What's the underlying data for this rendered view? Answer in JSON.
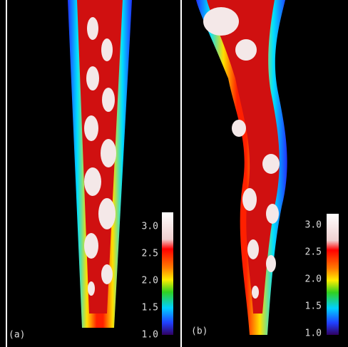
{
  "panels": [
    {
      "label": "(a)",
      "colorbar": {
        "ticks": [
          "3.0",
          "2.5",
          "2.0",
          "1.5",
          "1.0"
        ]
      }
    },
    {
      "label": "(b)",
      "colorbar": {
        "ticks": [
          "3.0",
          "2.5",
          "2.0",
          "1.5",
          "1.0"
        ]
      }
    }
  ]
}
